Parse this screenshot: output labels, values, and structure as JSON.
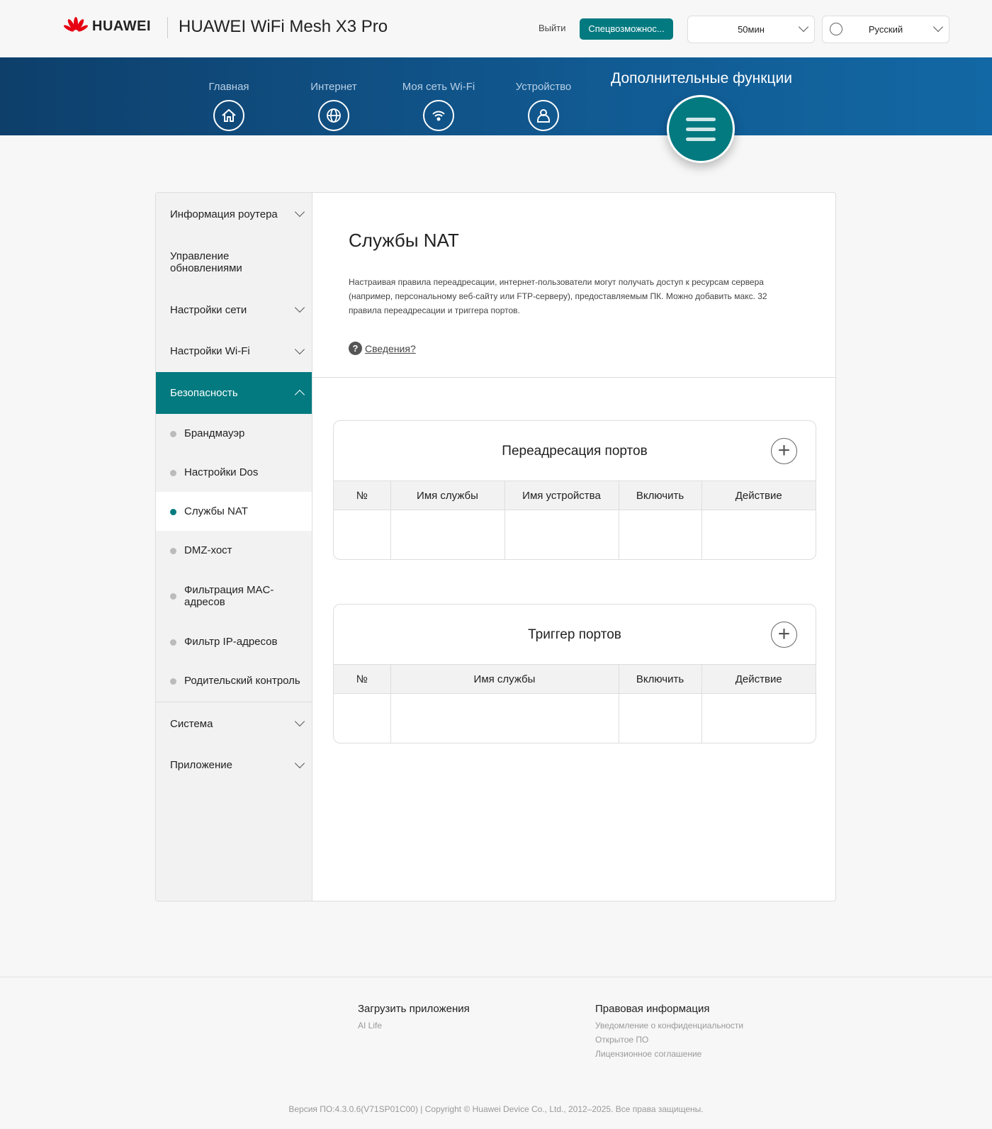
{
  "header": {
    "brand": "HUAWEI",
    "product": "HUAWEI WiFi Mesh X3 Pro",
    "logout": "Выйти",
    "accessibility": "Спецвозможнос...",
    "timeout": "50мин",
    "language": "Русский"
  },
  "nav": {
    "items": [
      {
        "label": "Главная",
        "icon": "home-icon"
      },
      {
        "label": "Интернет",
        "icon": "globe-icon"
      },
      {
        "label": "Моя сеть Wi-Fi",
        "icon": "wifi-icon"
      },
      {
        "label": "Устройство",
        "icon": "user-icon"
      }
    ],
    "active": "Дополнительные функции"
  },
  "sidebar": {
    "items": [
      "Информация роутера",
      "Управление обновлениями",
      "Настройки сети",
      "Настройки Wi-Fi",
      "Безопасность",
      "Система",
      "Приложение"
    ],
    "sub": [
      "Брандмауэр",
      "Настройки Dos",
      "Службы NAT",
      "DMZ-хост",
      "Фильтрация MAC-адресов",
      "Фильтр IP-адресов",
      "Родительский контроль"
    ],
    "active_sub": "Службы NAT"
  },
  "main": {
    "title": "Службы NAT",
    "description": "Настраивая правила переадресации, интернет-пользователи могут получать доступ к ресурсам сервера (например, персональному веб-сайту или FTP-серверу), предоставляемым ПК. Можно добавить макс. 32 правила переадресации и триггера портов.",
    "help": "Сведения?",
    "port_forwarding": {
      "title": "Переадресация портов",
      "columns": [
        "№",
        "Имя службы",
        "Имя устройства",
        "Включить",
        "Действие"
      ]
    },
    "port_trigger": {
      "title": "Триггер портов",
      "columns": [
        "№",
        "Имя службы",
        "Включить",
        "Действие"
      ]
    }
  },
  "footer": {
    "apps_title": "Загрузить приложения",
    "apps": [
      "AI Life"
    ],
    "legal_title": "Правовая информация",
    "legal": [
      "Уведомление о конфиденциальности",
      "Открытое ПО",
      "Лицензионное соглашение"
    ],
    "copyright": "Версия ПО:4.3.0.6(V71SP01C00) | Copyright © Huawei Device Co., Ltd., 2012–2025. Все права защищены."
  },
  "colors": {
    "accent": "#027a80",
    "nav_bg": "#115a92",
    "brand_red": "#e60012"
  }
}
